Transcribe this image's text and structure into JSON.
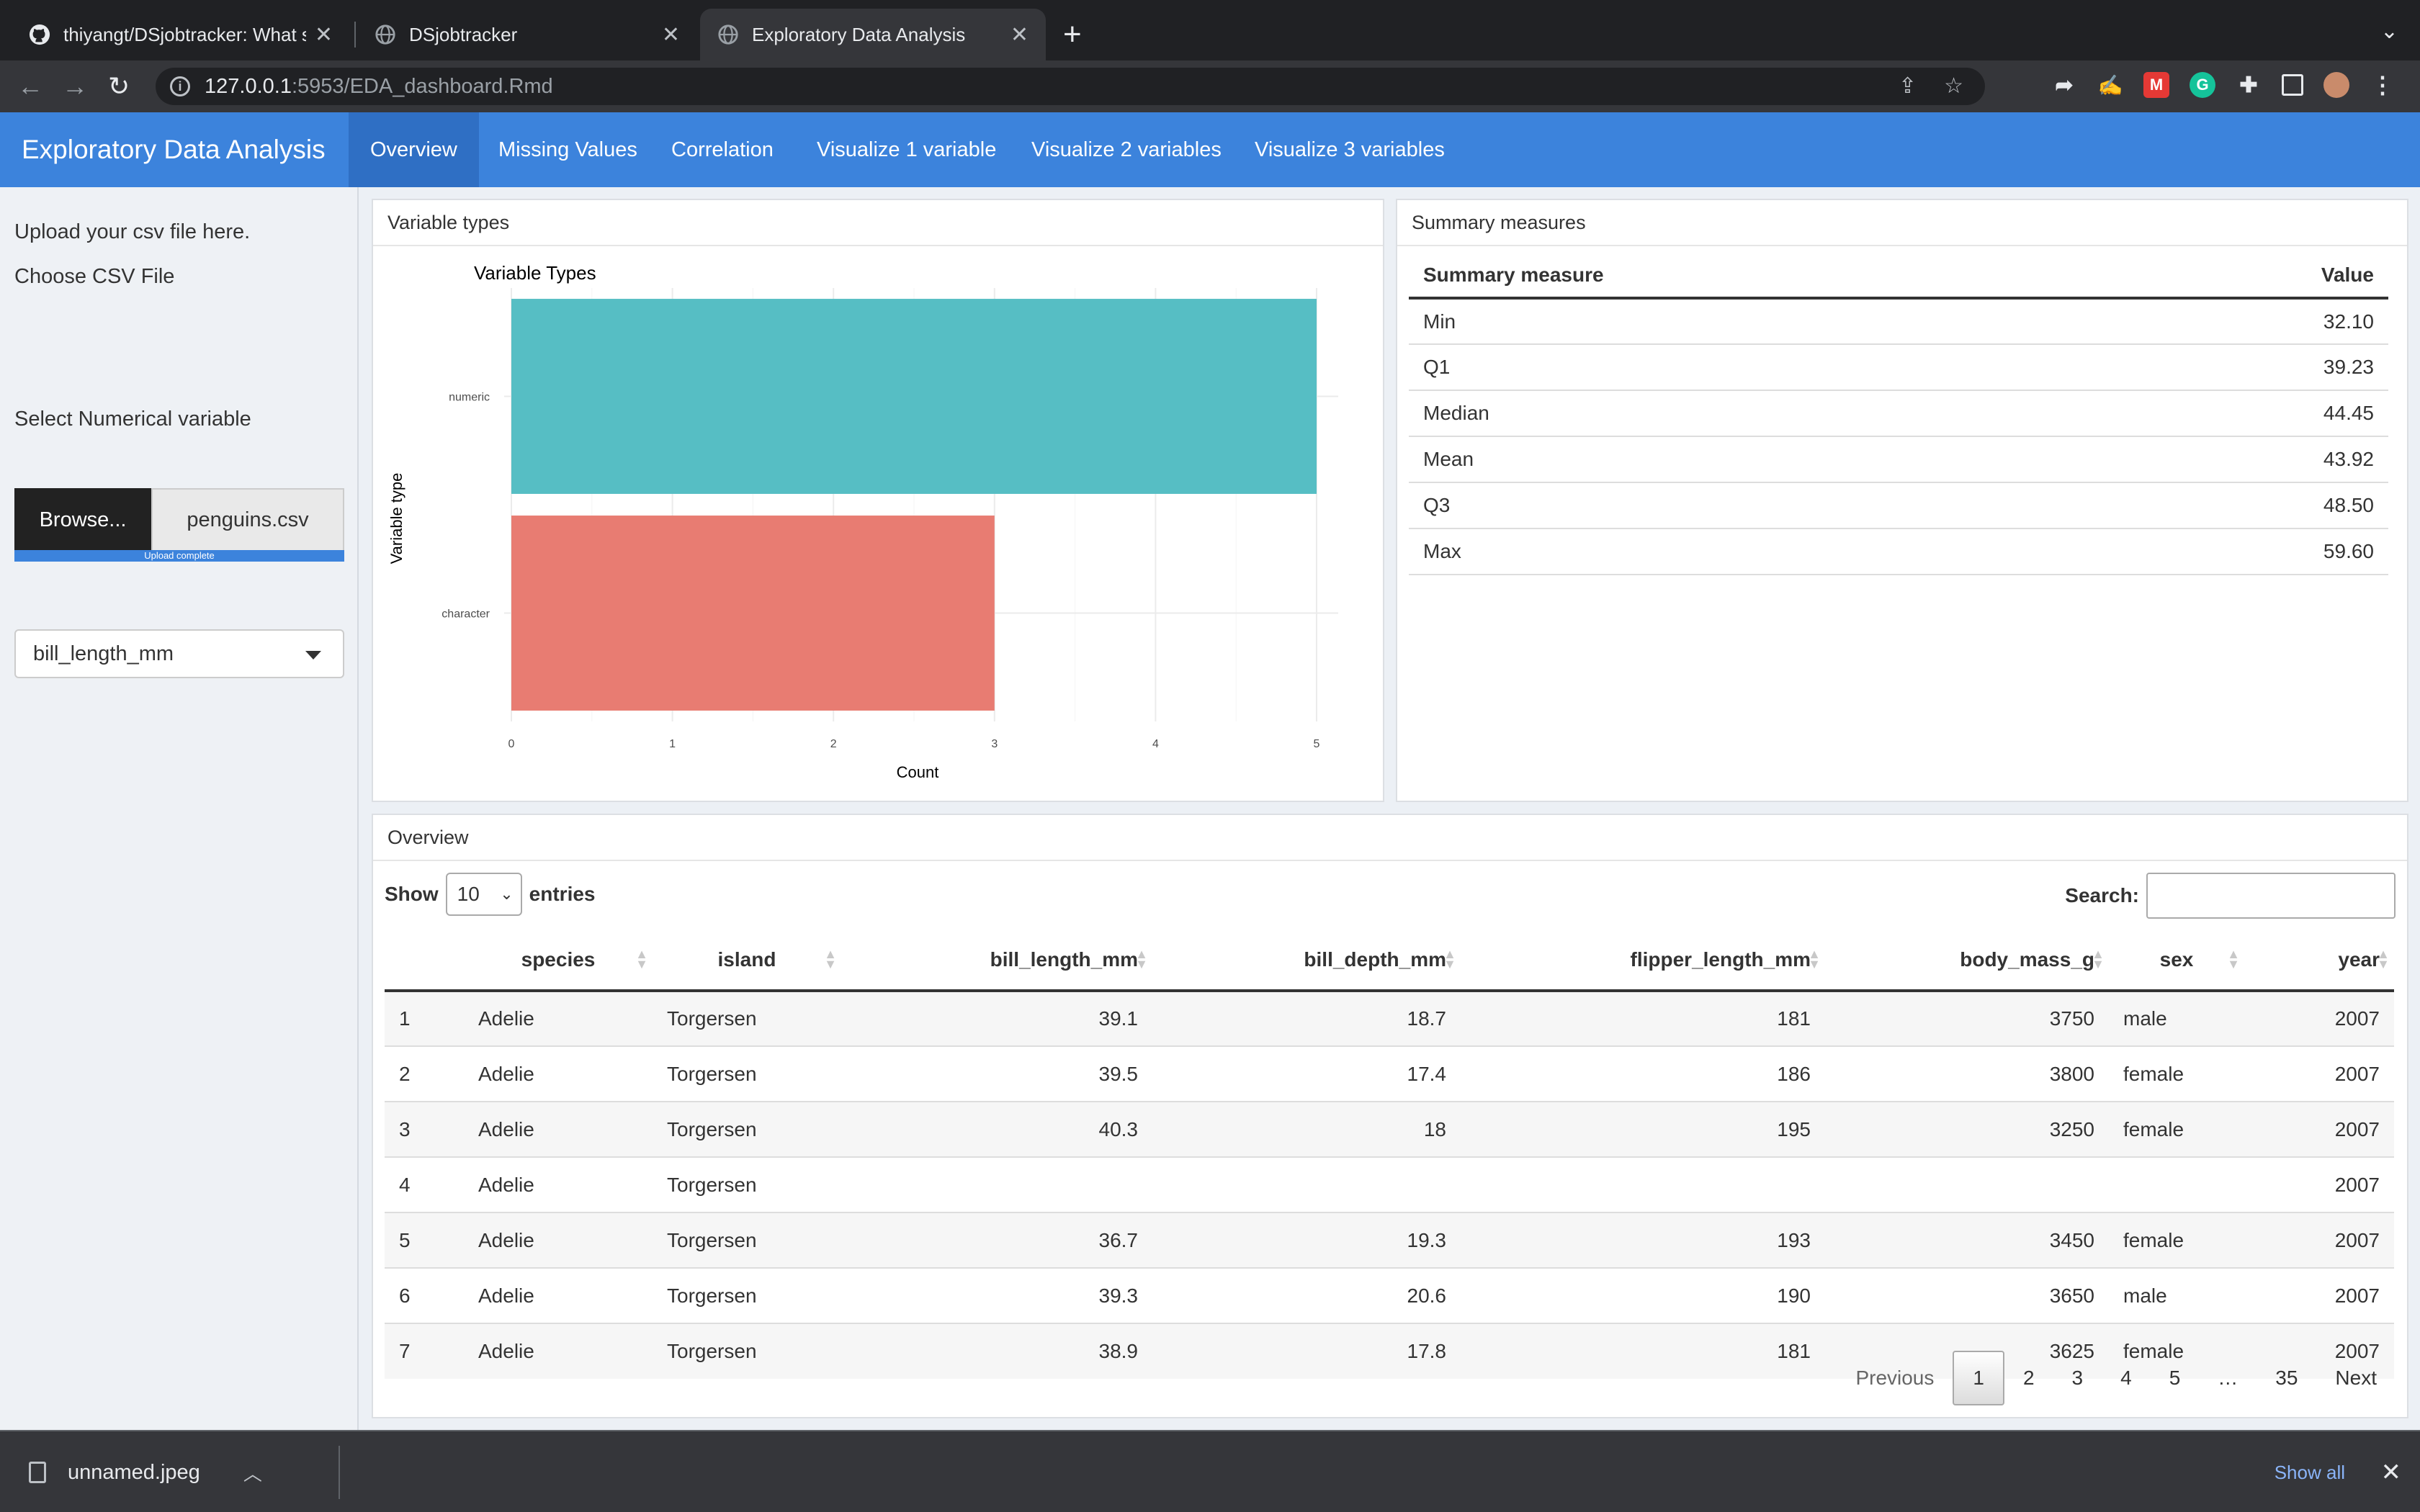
{
  "browser": {
    "tabs": [
      {
        "title": "thiyangt/DSjobtracker: What sk"
      },
      {
        "title": "DSjobtracker"
      },
      {
        "title": "Exploratory Data Analysis"
      }
    ],
    "url_host": "127.0.0.1",
    "url_path": ":5953/EDA_dashboard.Rmd"
  },
  "app": {
    "title": "Exploratory Data Analysis",
    "nav": [
      "Overview",
      "Missing Values",
      "Correlation",
      "Visualize 1 variable",
      "Visualize 2 variables",
      "Visualize 3 variables"
    ],
    "active_nav": "Overview",
    "accent": "#3c83dc"
  },
  "sidebar": {
    "upload_text": "Upload your csv file here.",
    "choose_label": "Choose CSV File",
    "browse_label": "Browse...",
    "file_name": "penguins.csv",
    "progress_text": "Upload complete",
    "progress_fraction": 1.0,
    "select_label": "Select Numerical variable",
    "selected_variable": "bill_length_mm"
  },
  "variable_types_panel": {
    "title": "Variable types"
  },
  "chart_data": {
    "type": "bar",
    "orientation": "horizontal",
    "title": "Variable Types",
    "xlabel": "Count",
    "ylabel": "Variable type",
    "categories": [
      "numeric",
      "character"
    ],
    "values": [
      5,
      3
    ],
    "colors": [
      "#56bec4",
      "#e87c72"
    ],
    "xlim": [
      0,
      5
    ],
    "xticks": [
      "0",
      "1",
      "2",
      "3",
      "4",
      "5"
    ],
    "grid": true
  },
  "summary_panel": {
    "title": "Summary measures",
    "headers": [
      "Summary measure",
      "Value"
    ],
    "rows": [
      [
        "Min",
        "32.10"
      ],
      [
        "Q1",
        "39.23"
      ],
      [
        "Median",
        "44.45"
      ],
      [
        "Mean",
        "43.92"
      ],
      [
        "Q3",
        "48.50"
      ],
      [
        "Max",
        "59.60"
      ]
    ]
  },
  "overview_panel": {
    "title": "Overview",
    "show_label": "Show",
    "entries_value": "10",
    "entries_label": "entries",
    "search_label": "Search:",
    "columns": [
      "",
      "species",
      "island",
      "bill_length_mm",
      "bill_depth_mm",
      "flipper_length_mm",
      "body_mass_g",
      "sex",
      "year"
    ],
    "rows": [
      [
        "1",
        "Adelie",
        "Torgersen",
        "39.1",
        "18.7",
        "181",
        "3750",
        "male",
        "2007"
      ],
      [
        "2",
        "Adelie",
        "Torgersen",
        "39.5",
        "17.4",
        "186",
        "3800",
        "female",
        "2007"
      ],
      [
        "3",
        "Adelie",
        "Torgersen",
        "40.3",
        "18",
        "195",
        "3250",
        "female",
        "2007"
      ],
      [
        "4",
        "Adelie",
        "Torgersen",
        "",
        "",
        "",
        "",
        "",
        "2007"
      ],
      [
        "5",
        "Adelie",
        "Torgersen",
        "36.7",
        "19.3",
        "193",
        "3450",
        "female",
        "2007"
      ],
      [
        "6",
        "Adelie",
        "Torgersen",
        "39.3",
        "20.6",
        "190",
        "3650",
        "male",
        "2007"
      ],
      [
        "7",
        "Adelie",
        "Torgersen",
        "38.9",
        "17.8",
        "181",
        "3625",
        "female",
        "2007"
      ]
    ],
    "pager": {
      "previous": "Previous",
      "pages": [
        "1",
        "2",
        "3",
        "4",
        "5",
        "…",
        "35"
      ],
      "current": "1",
      "next": "Next"
    }
  },
  "download_bar": {
    "file": "unnamed.jpeg",
    "show_all": "Show all"
  }
}
